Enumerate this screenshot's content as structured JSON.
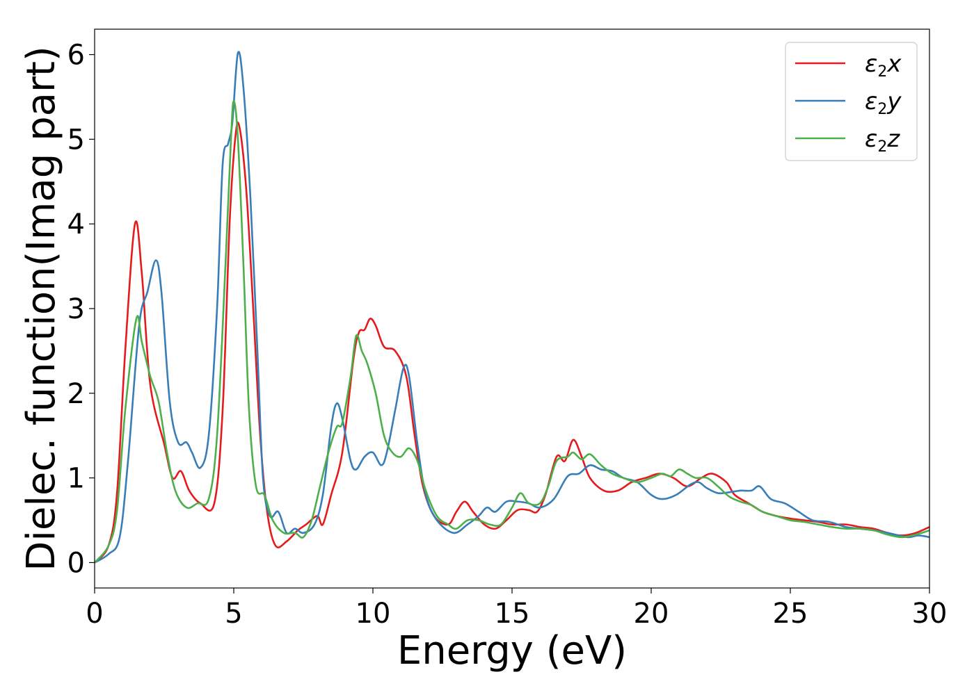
{
  "chart_data": {
    "type": "line",
    "title": "",
    "xlabel": "Energy (eV)",
    "ylabel": "Dielec. function(Imag part)",
    "xlim": [
      0,
      30
    ],
    "ylim": [
      -0.3,
      6.3
    ],
    "xticks": [
      0,
      5,
      10,
      15,
      20,
      25,
      30
    ],
    "xtick_labels": [
      "0",
      "5",
      "10",
      "15",
      "20",
      "25",
      "30"
    ],
    "yticks": [
      0,
      1,
      2,
      3,
      4,
      5,
      6
    ],
    "ytick_labels": [
      "0",
      "1",
      "2",
      "3",
      "4",
      "5",
      "6"
    ],
    "grid": false,
    "legend": "top-right",
    "series": [
      {
        "name": "ε₂x",
        "legend_base": "ε",
        "legend_sub": "2",
        "legend_suffix": "x",
        "color": "#e41a1c",
        "points": [
          [
            0,
            0
          ],
          [
            0.5,
            0.2
          ],
          [
            0.8,
            0.8
          ],
          [
            1.1,
            2.5
          ],
          [
            1.45,
            4.0
          ],
          [
            1.7,
            3.4
          ],
          [
            2.0,
            2.1
          ],
          [
            2.5,
            1.4
          ],
          [
            2.8,
            1.0
          ],
          [
            3.1,
            1.08
          ],
          [
            3.4,
            0.85
          ],
          [
            3.8,
            0.7
          ],
          [
            4.3,
            0.7
          ],
          [
            4.6,
            1.8
          ],
          [
            4.85,
            4.0
          ],
          [
            5.05,
            5.0
          ],
          [
            5.2,
            5.15
          ],
          [
            5.45,
            4.4
          ],
          [
            5.7,
            3.0
          ],
          [
            5.95,
            1.5
          ],
          [
            6.2,
            0.6
          ],
          [
            6.5,
            0.2
          ],
          [
            6.9,
            0.25
          ],
          [
            7.3,
            0.38
          ],
          [
            7.6,
            0.45
          ],
          [
            8.0,
            0.55
          ],
          [
            8.2,
            0.45
          ],
          [
            8.5,
            0.8
          ],
          [
            8.9,
            1.3
          ],
          [
            9.3,
            2.4
          ],
          [
            9.5,
            2.72
          ],
          [
            9.7,
            2.75
          ],
          [
            9.9,
            2.88
          ],
          [
            10.1,
            2.8
          ],
          [
            10.4,
            2.55
          ],
          [
            10.8,
            2.5
          ],
          [
            11.2,
            2.2
          ],
          [
            11.5,
            1.5
          ],
          [
            11.8,
            0.9
          ],
          [
            12.2,
            0.55
          ],
          [
            12.7,
            0.45
          ],
          [
            13.0,
            0.6
          ],
          [
            13.3,
            0.72
          ],
          [
            13.6,
            0.6
          ],
          [
            14.0,
            0.45
          ],
          [
            14.4,
            0.4
          ],
          [
            14.8,
            0.5
          ],
          [
            15.2,
            0.62
          ],
          [
            15.6,
            0.62
          ],
          [
            15.9,
            0.6
          ],
          [
            16.2,
            0.8
          ],
          [
            16.6,
            1.25
          ],
          [
            16.9,
            1.2
          ],
          [
            17.2,
            1.45
          ],
          [
            17.5,
            1.25
          ],
          [
            17.8,
            1.0
          ],
          [
            18.3,
            0.85
          ],
          [
            18.8,
            0.85
          ],
          [
            19.3,
            0.95
          ],
          [
            19.8,
            1.0
          ],
          [
            20.3,
            1.05
          ],
          [
            20.8,
            1.0
          ],
          [
            21.3,
            0.9
          ],
          [
            21.8,
            1.0
          ],
          [
            22.2,
            1.05
          ],
          [
            22.7,
            0.95
          ],
          [
            23.0,
            0.8
          ],
          [
            23.5,
            0.7
          ],
          [
            24.0,
            0.6
          ],
          [
            24.5,
            0.55
          ],
          [
            25.0,
            0.52
          ],
          [
            25.5,
            0.5
          ],
          [
            26.0,
            0.48
          ],
          [
            26.5,
            0.45
          ],
          [
            27.0,
            0.45
          ],
          [
            27.5,
            0.42
          ],
          [
            28.0,
            0.4
          ],
          [
            28.5,
            0.35
          ],
          [
            29.0,
            0.32
          ],
          [
            29.5,
            0.35
          ],
          [
            30.0,
            0.42
          ]
        ]
      },
      {
        "name": "ε₂y",
        "legend_base": "ε",
        "legend_sub": "2",
        "legend_suffix": "y",
        "color": "#377eb8",
        "points": [
          [
            0,
            0
          ],
          [
            0.5,
            0.1
          ],
          [
            0.9,
            0.3
          ],
          [
            1.2,
            1.2
          ],
          [
            1.6,
            2.8
          ],
          [
            1.9,
            3.2
          ],
          [
            2.2,
            3.57
          ],
          [
            2.4,
            3.2
          ],
          [
            2.7,
            1.9
          ],
          [
            3.0,
            1.42
          ],
          [
            3.3,
            1.42
          ],
          [
            3.5,
            1.3
          ],
          [
            3.8,
            1.12
          ],
          [
            4.1,
            1.5
          ],
          [
            4.4,
            3.0
          ],
          [
            4.6,
            4.7
          ],
          [
            4.8,
            4.95
          ],
          [
            4.95,
            5.2
          ],
          [
            5.15,
            6.02
          ],
          [
            5.35,
            5.6
          ],
          [
            5.6,
            4.3
          ],
          [
            5.85,
            2.5
          ],
          [
            6.05,
            1.0
          ],
          [
            6.3,
            0.55
          ],
          [
            6.6,
            0.6
          ],
          [
            6.9,
            0.35
          ],
          [
            7.2,
            0.4
          ],
          [
            7.5,
            0.35
          ],
          [
            7.9,
            0.45
          ],
          [
            8.2,
            0.8
          ],
          [
            8.5,
            1.6
          ],
          [
            8.7,
            1.88
          ],
          [
            8.9,
            1.7
          ],
          [
            9.2,
            1.2
          ],
          [
            9.4,
            1.1
          ],
          [
            9.7,
            1.25
          ],
          [
            10.0,
            1.3
          ],
          [
            10.3,
            1.15
          ],
          [
            10.5,
            1.3
          ],
          [
            10.8,
            1.8
          ],
          [
            11.1,
            2.3
          ],
          [
            11.3,
            2.2
          ],
          [
            11.6,
            1.4
          ],
          [
            11.9,
            0.8
          ],
          [
            12.3,
            0.5
          ],
          [
            12.9,
            0.35
          ],
          [
            13.4,
            0.45
          ],
          [
            13.8,
            0.55
          ],
          [
            14.1,
            0.65
          ],
          [
            14.4,
            0.6
          ],
          [
            14.8,
            0.72
          ],
          [
            15.2,
            0.72
          ],
          [
            15.6,
            0.7
          ],
          [
            16.0,
            0.65
          ],
          [
            16.5,
            0.75
          ],
          [
            17.0,
            1.02
          ],
          [
            17.4,
            1.05
          ],
          [
            17.8,
            1.15
          ],
          [
            18.2,
            1.1
          ],
          [
            18.6,
            1.08
          ],
          [
            19.0,
            1.0
          ],
          [
            19.5,
            0.95
          ],
          [
            20.0,
            0.8
          ],
          [
            20.4,
            0.75
          ],
          [
            20.9,
            0.8
          ],
          [
            21.4,
            0.92
          ],
          [
            21.7,
            0.95
          ],
          [
            22.0,
            0.88
          ],
          [
            22.4,
            0.82
          ],
          [
            22.8,
            0.83
          ],
          [
            23.2,
            0.85
          ],
          [
            23.6,
            0.85
          ],
          [
            23.9,
            0.9
          ],
          [
            24.3,
            0.75
          ],
          [
            24.8,
            0.7
          ],
          [
            25.3,
            0.6
          ],
          [
            25.8,
            0.5
          ],
          [
            26.4,
            0.48
          ],
          [
            27.0,
            0.42
          ],
          [
            27.5,
            0.4
          ],
          [
            28.0,
            0.38
          ],
          [
            28.5,
            0.35
          ],
          [
            29.2,
            0.3
          ],
          [
            29.6,
            0.32
          ],
          [
            30.0,
            0.3
          ]
        ]
      },
      {
        "name": "ε₂z",
        "legend_base": "ε",
        "legend_sub": "2",
        "legend_suffix": "z",
        "color": "#4daf4a",
        "points": [
          [
            0,
            0
          ],
          [
            0.5,
            0.2
          ],
          [
            0.8,
            0.6
          ],
          [
            1.1,
            1.8
          ],
          [
            1.5,
            2.88
          ],
          [
            1.7,
            2.6
          ],
          [
            2.0,
            2.2
          ],
          [
            2.3,
            1.9
          ],
          [
            2.6,
            1.3
          ],
          [
            2.9,
            0.85
          ],
          [
            3.3,
            0.65
          ],
          [
            3.7,
            0.7
          ],
          [
            4.1,
            0.75
          ],
          [
            4.4,
            1.5
          ],
          [
            4.7,
            3.5
          ],
          [
            4.9,
            5.0
          ],
          [
            5.0,
            5.45
          ],
          [
            5.15,
            5.0
          ],
          [
            5.35,
            3.5
          ],
          [
            5.55,
            1.8
          ],
          [
            5.8,
            0.9
          ],
          [
            6.1,
            0.8
          ],
          [
            6.4,
            0.5
          ],
          [
            6.8,
            0.35
          ],
          [
            7.2,
            0.35
          ],
          [
            7.5,
            0.3
          ],
          [
            7.8,
            0.5
          ],
          [
            8.1,
            0.9
          ],
          [
            8.4,
            1.3
          ],
          [
            8.7,
            1.6
          ],
          [
            8.9,
            1.65
          ],
          [
            9.2,
            2.2
          ],
          [
            9.4,
            2.68
          ],
          [
            9.6,
            2.5
          ],
          [
            9.8,
            2.35
          ],
          [
            10.1,
            2.0
          ],
          [
            10.4,
            1.5
          ],
          [
            10.7,
            1.3
          ],
          [
            11.0,
            1.25
          ],
          [
            11.3,
            1.35
          ],
          [
            11.6,
            1.2
          ],
          [
            11.9,
            0.85
          ],
          [
            12.3,
            0.55
          ],
          [
            12.7,
            0.45
          ],
          [
            13.0,
            0.4
          ],
          [
            13.4,
            0.5
          ],
          [
            13.8,
            0.5
          ],
          [
            14.2,
            0.45
          ],
          [
            14.6,
            0.45
          ],
          [
            15.0,
            0.65
          ],
          [
            15.3,
            0.82
          ],
          [
            15.6,
            0.7
          ],
          [
            16.0,
            0.7
          ],
          [
            16.3,
            0.9
          ],
          [
            16.6,
            1.2
          ],
          [
            17.0,
            1.25
          ],
          [
            17.2,
            1.3
          ],
          [
            17.5,
            1.22
          ],
          [
            17.8,
            1.28
          ],
          [
            18.2,
            1.15
          ],
          [
            18.6,
            1.05
          ],
          [
            19.0,
            1.0
          ],
          [
            19.5,
            0.95
          ],
          [
            20.0,
            1.0
          ],
          [
            20.4,
            1.05
          ],
          [
            20.7,
            1.02
          ],
          [
            21.0,
            1.1
          ],
          [
            21.3,
            1.05
          ],
          [
            21.6,
            1.0
          ],
          [
            22.0,
            1.0
          ],
          [
            22.4,
            0.9
          ],
          [
            22.8,
            0.78
          ],
          [
            23.2,
            0.72
          ],
          [
            23.6,
            0.68
          ],
          [
            24.0,
            0.6
          ],
          [
            24.5,
            0.55
          ],
          [
            25.0,
            0.5
          ],
          [
            25.5,
            0.48
          ],
          [
            26.0,
            0.45
          ],
          [
            26.5,
            0.42
          ],
          [
            27.0,
            0.4
          ],
          [
            27.5,
            0.4
          ],
          [
            28.0,
            0.38
          ],
          [
            28.5,
            0.33
          ],
          [
            29.0,
            0.3
          ],
          [
            29.5,
            0.33
          ],
          [
            30.0,
            0.38
          ]
        ]
      }
    ]
  }
}
